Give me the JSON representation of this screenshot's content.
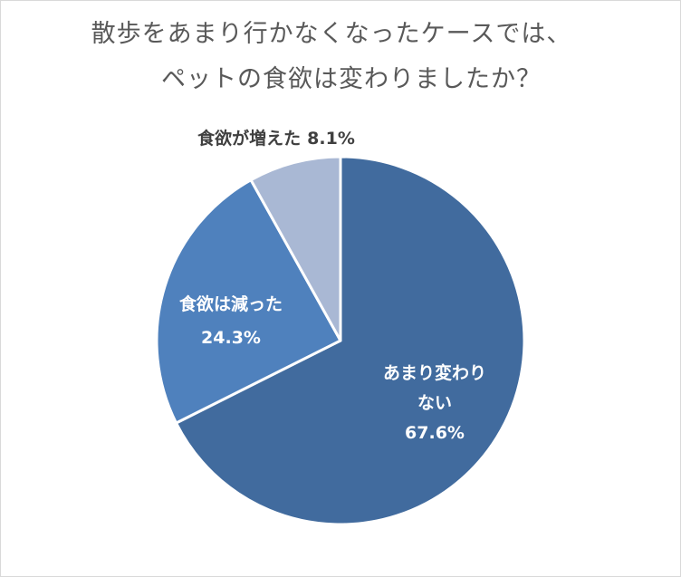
{
  "chart_data": {
    "type": "pie",
    "title_lines": [
      "散歩をあまり行かなくなったケースでは、",
      "ペットの食欲は変わりましたか？"
    ],
    "slices": [
      {
        "label_lines": [
          "あまり変わり",
          "ない"
        ],
        "value": 67.6,
        "value_label": "67.6%",
        "color": "#416b9e",
        "label_color": "#ffffff"
      },
      {
        "label_lines": [
          "食欲は減った"
        ],
        "value": 24.3,
        "value_label": "24.3%",
        "color": "#4f81bd",
        "label_color": "#ffffff"
      },
      {
        "label_lines": [
          "食欲が増えた"
        ],
        "value": 8.1,
        "value_label": "8.1%",
        "color": "#a9b8d4",
        "label_color": "#404040"
      }
    ],
    "start": "12 o'clock",
    "direction": "clockwise",
    "slice_border_color": "#ffffff"
  }
}
